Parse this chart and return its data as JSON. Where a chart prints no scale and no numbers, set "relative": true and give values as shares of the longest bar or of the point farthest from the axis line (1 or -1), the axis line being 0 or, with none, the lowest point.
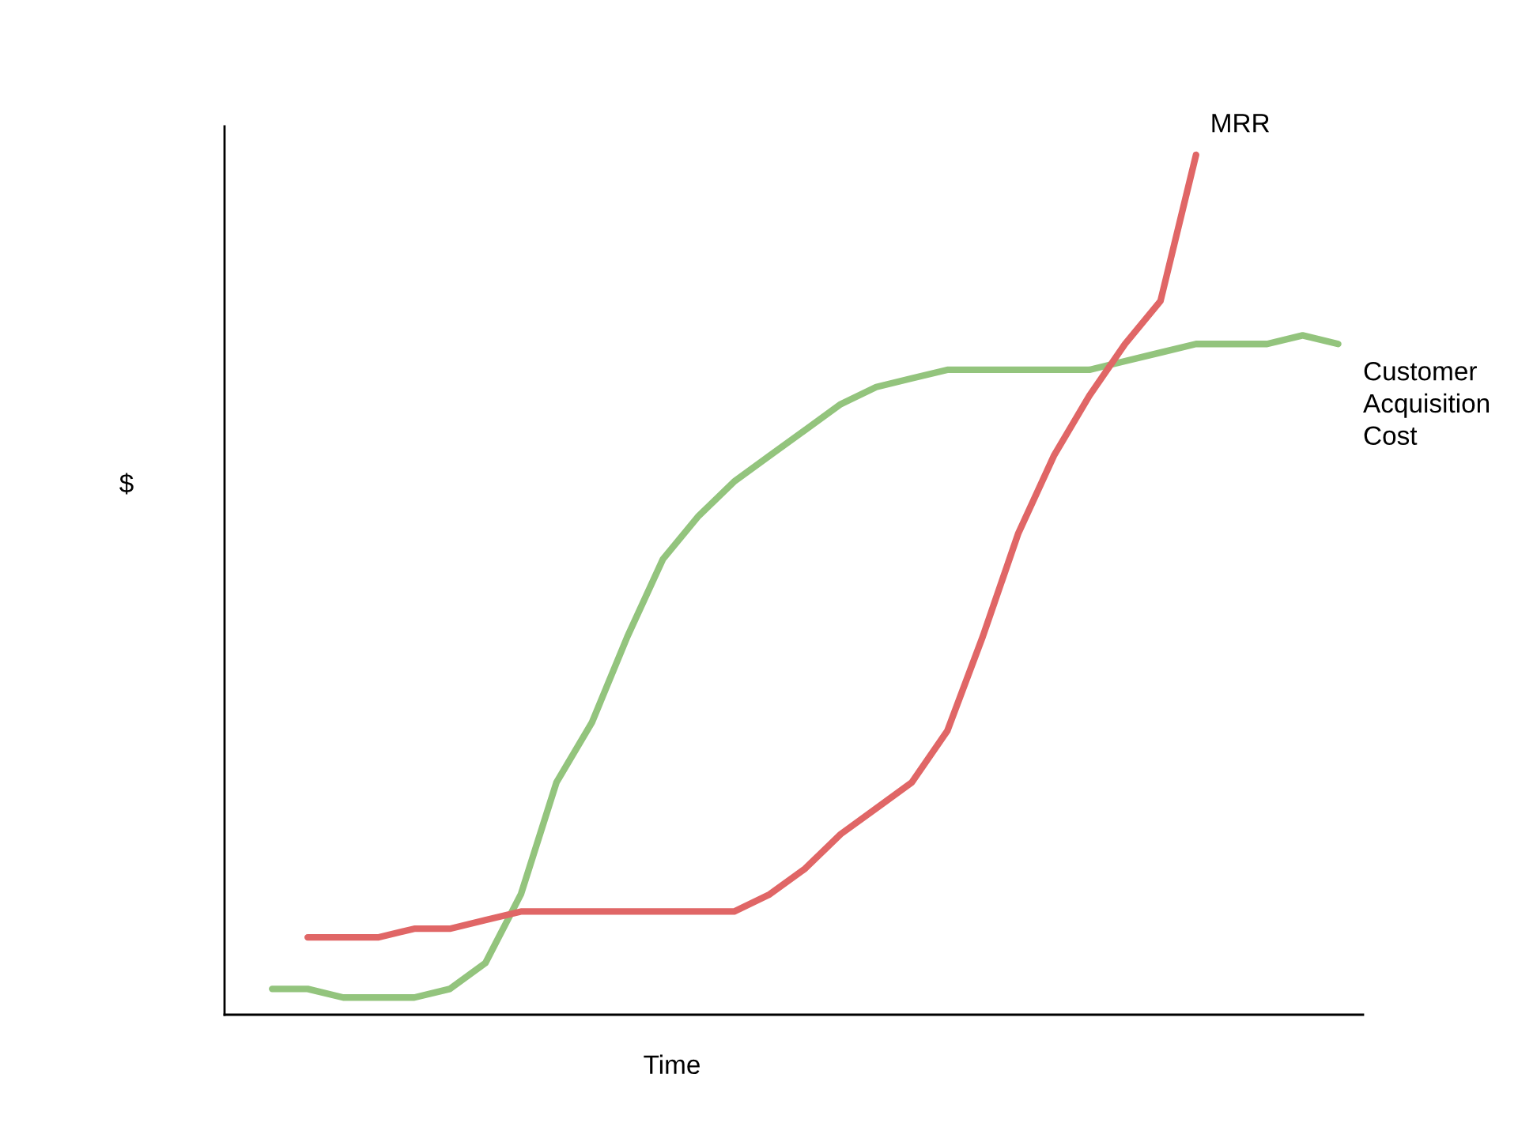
{
  "chart_data": {
    "type": "line",
    "relative": true,
    "xlabel": "Time",
    "ylabel": "$",
    "legend": false,
    "grid": false,
    "marker": "none",
    "line_style": "solid",
    "categories": [
      null,
      null,
      null,
      null,
      null,
      null,
      null,
      null,
      null,
      null,
      null,
      null,
      null,
      null,
      null,
      null,
      null,
      null,
      null,
      null,
      null,
      null,
      null,
      null,
      null,
      null,
      null,
      null,
      null,
      null,
      null
    ],
    "series": [
      {
        "name": "Customer Acquisition Cost",
        "color": "#93c47d",
        "values": [
          0.03,
          0.03,
          0.02,
          0.02,
          0.02,
          0.03,
          0.06,
          0.14,
          0.27,
          0.34,
          0.44,
          0.53,
          0.58,
          0.62,
          0.65,
          0.68,
          0.71,
          0.73,
          0.74,
          0.75,
          0.75,
          0.75,
          0.75,
          0.75,
          0.76,
          0.77,
          0.78,
          0.78,
          0.78,
          0.79,
          0.78
        ]
      },
      {
        "name": "MRR",
        "color": "#e06666",
        "values": [
          null,
          0.09,
          0.09,
          0.09,
          0.1,
          0.1,
          0.11,
          0.12,
          0.12,
          0.12,
          0.12,
          0.12,
          0.12,
          0.12,
          0.14,
          0.17,
          0.21,
          0.24,
          0.27,
          0.33,
          0.44,
          0.56,
          0.65,
          0.72,
          0.78,
          0.83,
          1.0,
          null,
          null,
          null,
          null
        ]
      }
    ]
  }
}
